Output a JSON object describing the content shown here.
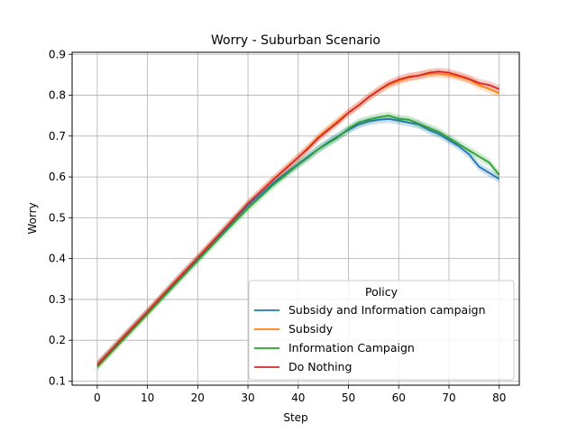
{
  "chart_data": {
    "type": "line",
    "title": "Worry - Suburban Scenario",
    "xlabel": "Step",
    "ylabel": "Worry",
    "xlim": [
      -5,
      84
    ],
    "ylim": [
      0.09,
      0.905
    ],
    "xticks": [
      0,
      10,
      20,
      30,
      40,
      50,
      60,
      70,
      80
    ],
    "yticks": [
      0.1,
      0.2,
      0.3,
      0.4,
      0.5,
      0.6,
      0.7,
      0.8,
      0.9
    ],
    "grid": true,
    "legend": {
      "title": "Policy",
      "placement": "lower-right"
    },
    "band_width": 0.01,
    "series": [
      {
        "name": "Subsidy and Information campaign",
        "color": "#1f77b4",
        "x": [
          0,
          5,
          10,
          15,
          20,
          25,
          30,
          35,
          40,
          42,
          44,
          46,
          48,
          50,
          52,
          54,
          56,
          58,
          60,
          62,
          64,
          66,
          68,
          70,
          72,
          74,
          76,
          78,
          80
        ],
        "y": [
          0.14,
          0.205,
          0.27,
          0.335,
          0.4,
          0.465,
          0.53,
          0.585,
          0.632,
          0.65,
          0.668,
          0.685,
          0.7,
          0.715,
          0.728,
          0.736,
          0.74,
          0.742,
          0.738,
          0.733,
          0.728,
          0.715,
          0.705,
          0.69,
          0.675,
          0.655,
          0.625,
          0.61,
          0.595
        ]
      },
      {
        "name": "Subsidy",
        "color": "#ff7f0e",
        "x": [
          0,
          5,
          10,
          15,
          20,
          25,
          30,
          35,
          40,
          42,
          44,
          46,
          48,
          50,
          52,
          54,
          56,
          58,
          60,
          62,
          64,
          66,
          68,
          70,
          72,
          74,
          76,
          78,
          80
        ],
        "y": [
          0.14,
          0.205,
          0.27,
          0.337,
          0.402,
          0.468,
          0.535,
          0.593,
          0.648,
          0.672,
          0.698,
          0.718,
          0.738,
          0.758,
          0.775,
          0.795,
          0.812,
          0.825,
          0.835,
          0.843,
          0.848,
          0.852,
          0.853,
          0.85,
          0.845,
          0.838,
          0.825,
          0.815,
          0.805
        ]
      },
      {
        "name": "Information Campaign",
        "color": "#2ca02c",
        "x": [
          0,
          5,
          10,
          15,
          20,
          25,
          30,
          35,
          40,
          42,
          44,
          46,
          48,
          50,
          52,
          54,
          56,
          58,
          60,
          62,
          64,
          66,
          68,
          70,
          72,
          74,
          76,
          78,
          80
        ],
        "y": [
          0.135,
          0.2,
          0.265,
          0.33,
          0.395,
          0.46,
          0.523,
          0.58,
          0.63,
          0.648,
          0.668,
          0.683,
          0.698,
          0.718,
          0.733,
          0.74,
          0.746,
          0.75,
          0.742,
          0.74,
          0.73,
          0.72,
          0.71,
          0.695,
          0.68,
          0.665,
          0.65,
          0.635,
          0.605
        ]
      },
      {
        "name": "Do Nothing",
        "color": "#d62728",
        "x": [
          0,
          5,
          10,
          15,
          20,
          25,
          30,
          35,
          40,
          42,
          44,
          46,
          48,
          50,
          52,
          54,
          56,
          58,
          60,
          62,
          64,
          66,
          68,
          70,
          72,
          74,
          76,
          78,
          80
        ],
        "y": [
          0.14,
          0.205,
          0.27,
          0.337,
          0.402,
          0.468,
          0.535,
          0.593,
          0.648,
          0.67,
          0.695,
          0.715,
          0.735,
          0.757,
          0.775,
          0.795,
          0.812,
          0.828,
          0.838,
          0.845,
          0.848,
          0.855,
          0.858,
          0.855,
          0.848,
          0.84,
          0.83,
          0.825,
          0.815
        ]
      }
    ]
  }
}
